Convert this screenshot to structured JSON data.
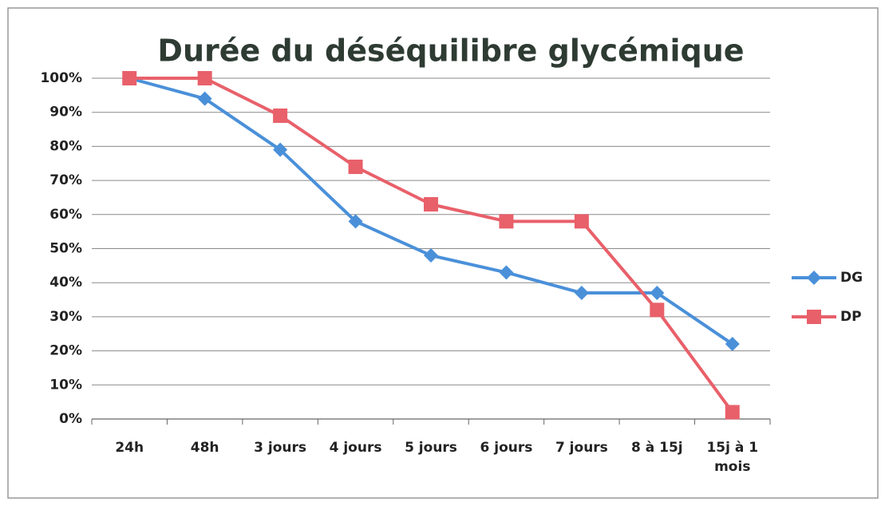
{
  "chart_data": {
    "type": "line",
    "title": "Durée du déséquilibre glycémique",
    "categories": [
      "24h",
      "48h",
      "3 jours",
      "4 jours",
      "5 jours",
      "6 jours",
      "7 jours",
      "8 à 15j",
      "15j à 1 mois"
    ],
    "series": [
      {
        "name": "DG",
        "color": "#4a90d9",
        "marker": "diamond",
        "values": [
          100,
          94,
          79,
          58,
          48,
          43,
          37,
          37,
          22
        ]
      },
      {
        "name": "DP",
        "color": "#e8606a",
        "marker": "square",
        "values": [
          100,
          100,
          89,
          74,
          63,
          58,
          58,
          32,
          2
        ]
      }
    ],
    "ylim": [
      0,
      100
    ],
    "yticks": [
      {
        "value": 0,
        "label": "0%"
      },
      {
        "value": 10,
        "label": "10%"
      },
      {
        "value": 20,
        "label": "20%"
      },
      {
        "value": 30,
        "label": "30%"
      },
      {
        "value": 40,
        "label": "40%"
      },
      {
        "value": 50,
        "label": "50%"
      },
      {
        "value": 60,
        "label": "60%"
      },
      {
        "value": 70,
        "label": "70%"
      },
      {
        "value": 80,
        "label": "80%"
      },
      {
        "value": 90,
        "label": "90%"
      },
      {
        "value": 100,
        "label": "100%"
      }
    ],
    "grid": true,
    "legend": "right"
  }
}
